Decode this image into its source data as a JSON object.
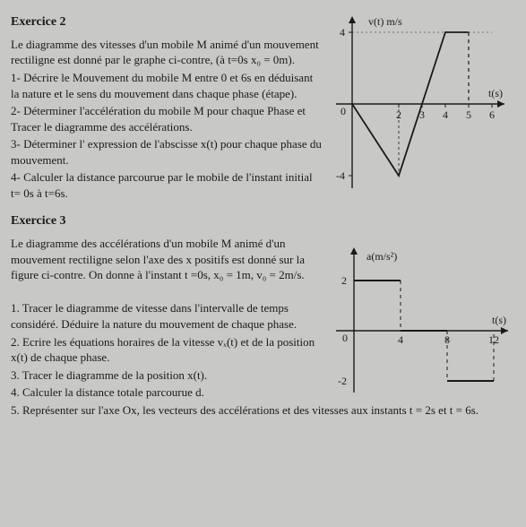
{
  "ex2": {
    "title": "Exercice 2",
    "intro1": "Le diagramme des vitesses d'un mobile M animé d'un mouvement rectiligne est donné par le graphe ci-contre, (à t=0s x₀ = 0m).",
    "q1": "1- Décrire le Mouvement du mobile M entre 0 et 6s en déduisant la nature et le sens du mouvement dans chaque phase (étape).",
    "q2": "2- Déterminer l'accélération du mobile M pour chaque Phase et Tracer le diagramme des accélérations.",
    "q3": "3- Déterminer l' expression de l'abscisse x(t) pour chaque phase du mouvement.",
    "q4": "4- Calculer la distance parcourue par le mobile de l'instant initial t= 0s à t=6s.",
    "chart": {
      "ylabel": "v(t) m/s",
      "xlabel": "t(s)",
      "ymax": 4,
      "ymin": -4,
      "xmin": 0,
      "xmax": 6,
      "xticks": [
        2,
        3,
        4,
        5,
        6
      ],
      "yticks_pos": [
        4
      ],
      "yticks_neg": [
        -4
      ],
      "points": [
        [
          0,
          0
        ],
        [
          2,
          -4
        ],
        [
          4,
          4
        ],
        [
          5,
          4
        ]
      ],
      "dashed": [
        [
          5,
          4
        ],
        [
          5,
          0
        ]
      ],
      "axis_color": "#1a1a1a",
      "line_color": "#1a1a1a",
      "background": "#c8c9c6",
      "font_size": 12
    }
  },
  "ex3": {
    "title": "Exercice 3",
    "intro1": "Le diagramme des accélérations d'un mobile M animé d'un mouvement rectiligne selon l'axe des x positifs est donné sur la figure ci-contre. On donne à l'instant t =0s, x₀ = 1m, v₀ = 2m/s.",
    "q1": "1. Tracer le diagramme de vitesse dans l'intervalle de temps considéré. Déduire la nature du mouvement de chaque phase.",
    "q2": "2. Ecrire les équations horaires de la vitesse vₓ(t) et de la position x(t) de chaque phase.",
    "q3": "3. Tracer le diagramme de la position x(t).",
    "q4": "4. Calculer la distance totale parcourue d.",
    "q5": "5. Représenter sur l'axe Ox, les vecteurs des accélérations et des vitesses aux instants t = 2s et t = 6s.",
    "chart": {
      "ylabel": "a(m/s²)",
      "xlabel": "t(s)",
      "ymax": 2,
      "ymin": -2,
      "xmin": 0,
      "xmax": 12,
      "xticks": [
        4,
        8,
        12
      ],
      "yticks_pos": [
        2
      ],
      "yticks_neg": [
        -2
      ],
      "segments": [
        {
          "from": [
            0,
            2
          ],
          "to": [
            4,
            2
          ]
        },
        {
          "from": [
            4,
            0
          ],
          "to": [
            8,
            0
          ]
        },
        {
          "from": [
            8,
            -2
          ],
          "to": [
            12,
            -2
          ]
        }
      ],
      "dashed_v": [
        [
          4,
          2,
          0
        ],
        [
          8,
          0,
          -2
        ],
        [
          12,
          -2,
          0
        ]
      ],
      "axis_color": "#1a1a1a",
      "line_color": "#1a1a1a",
      "background": "#c8c9c6",
      "font_size": 12
    }
  }
}
